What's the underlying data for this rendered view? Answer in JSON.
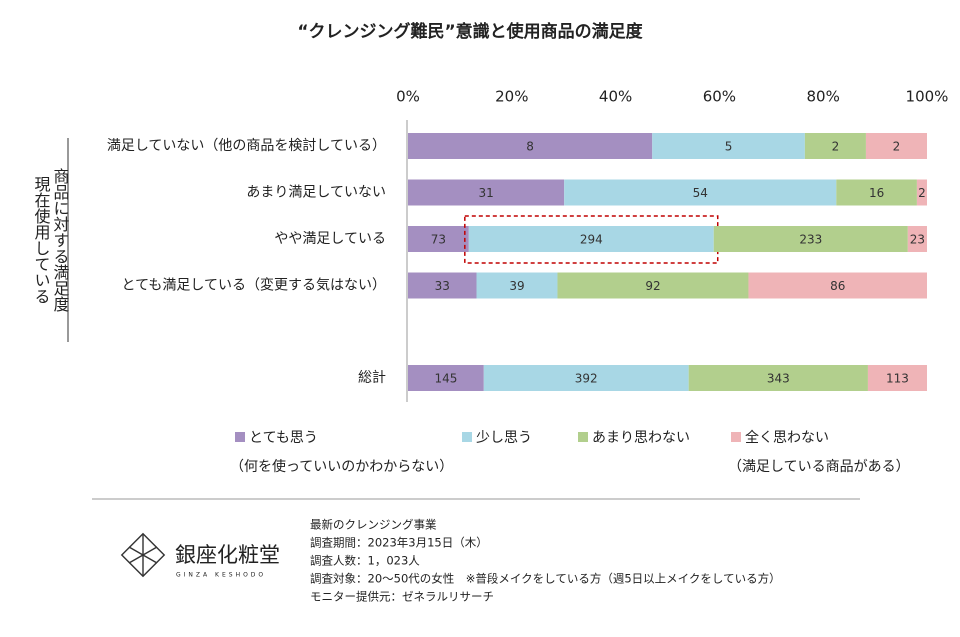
{
  "chart_data": {
    "type": "bar_100_stacked_horizontal",
    "title": "“クレンジング難民”意識と使用商品の満足度",
    "y_label": [
      "現在使用している",
      "商品に対する満足度"
    ],
    "categories": [
      "満足していない（他の商品を検討している）",
      "あまり満足していない",
      "やや満足している",
      "とても満足している（変更する気はない）",
      "総計"
    ],
    "series": [
      {
        "name": "とても思う",
        "color": "#a48fc1",
        "values": [
          8,
          31,
          73,
          33,
          145
        ]
      },
      {
        "name": "少し思う",
        "color": "#a8d7e5",
        "values": [
          5,
          54,
          294,
          39,
          392
        ]
      },
      {
        "name": "あまり思わない",
        "color": "#b2cf8d",
        "values": [
          2,
          16,
          233,
          92,
          343
        ]
      },
      {
        "name": "全く思わない",
        "color": "#efb4b7",
        "values": [
          2,
          2,
          23,
          86,
          113
        ]
      }
    ],
    "legend_notes": [
      "（何を使っていいのかわからない）",
      "（満足している商品がある）"
    ],
    "xlim": [
      0,
      100
    ],
    "xticks": [
      {
        "value": 0,
        "label": "0%"
      },
      {
        "value": 20,
        "label": "20%"
      },
      {
        "value": 40,
        "label": "40%"
      },
      {
        "value": 60,
        "label": "60%"
      },
      {
        "value": 80,
        "label": "80%"
      },
      {
        "value": 100,
        "label": "100%"
      }
    ]
  },
  "footer": {
    "logo": "銀座化粧堂",
    "logo_sub": "GINZA KESHODO",
    "lines": [
      "最新のクレンジング事業",
      "調査期間：2023年3月15日（木）",
      "調査人数：1，023人",
      "調査対象：20～50代の女性　※普段メイクをしている方（週5日以上メイクをしている方）",
      "モニター提供元：ゼネラルリサーチ"
    ]
  }
}
